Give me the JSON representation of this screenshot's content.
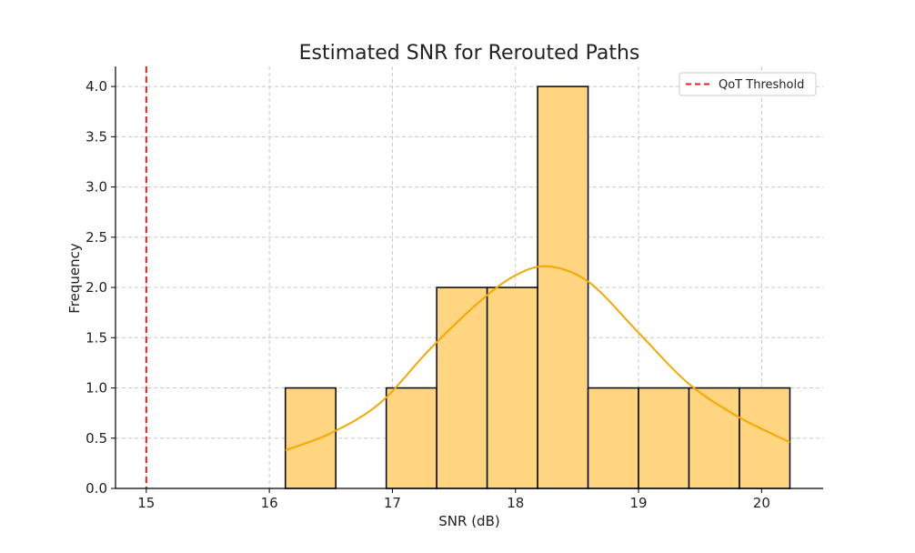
{
  "chart_data": {
    "type": "bar",
    "subtype": "histogram-with-kde",
    "title": "Estimated SNR for Rerouted Paths",
    "xlabel": "SNR (dB)",
    "ylabel": "Frequency",
    "xlim": [
      14.75,
      20.5
    ],
    "ylim": [
      0.0,
      4.2
    ],
    "xticks": [
      15,
      16,
      17,
      18,
      19,
      20
    ],
    "yticks": [
      0.0,
      0.5,
      1.0,
      1.5,
      2.0,
      2.5,
      3.0,
      3.5,
      4.0
    ],
    "xtick_labels": [
      "15",
      "16",
      "17",
      "18",
      "19",
      "20"
    ],
    "ytick_labels": [
      "0.0",
      "0.5",
      "1.0",
      "1.5",
      "2.0",
      "2.5",
      "3.0",
      "3.5",
      "4.0"
    ],
    "grid": true,
    "bins": [
      {
        "x0": 16.13,
        "x1": 16.54,
        "count": 1
      },
      {
        "x0": 16.54,
        "x1": 16.95,
        "count": 0
      },
      {
        "x0": 16.95,
        "x1": 17.36,
        "count": 1
      },
      {
        "x0": 17.36,
        "x1": 17.77,
        "count": 2
      },
      {
        "x0": 17.77,
        "x1": 18.18,
        "count": 2
      },
      {
        "x0": 18.18,
        "x1": 18.59,
        "count": 4
      },
      {
        "x0": 18.59,
        "x1": 19.0,
        "count": 1
      },
      {
        "x0": 19.0,
        "x1": 19.41,
        "count": 1
      },
      {
        "x0": 19.41,
        "x1": 19.82,
        "count": 1
      },
      {
        "x0": 19.82,
        "x1": 20.23,
        "count": 1
      }
    ],
    "kde": {
      "x": [
        16.13,
        16.5,
        16.9,
        17.3,
        17.7,
        18.0,
        18.27,
        18.6,
        19.0,
        19.4,
        19.8,
        20.23
      ],
      "y": [
        0.38,
        0.55,
        0.85,
        1.38,
        1.85,
        2.12,
        2.21,
        2.05,
        1.55,
        1.05,
        0.72,
        0.46
      ]
    },
    "threshold": {
      "x": 15.0,
      "label": "QoT Threshold"
    },
    "legend": {
      "position": "top-right",
      "entries": [
        "QoT Threshold"
      ]
    },
    "colors": {
      "bar_fill": "#FFD580",
      "bar_edge": "#000000",
      "kde_line": "#F5A800",
      "threshold_line": "#E02020",
      "grid": "#C8C8C8"
    }
  }
}
